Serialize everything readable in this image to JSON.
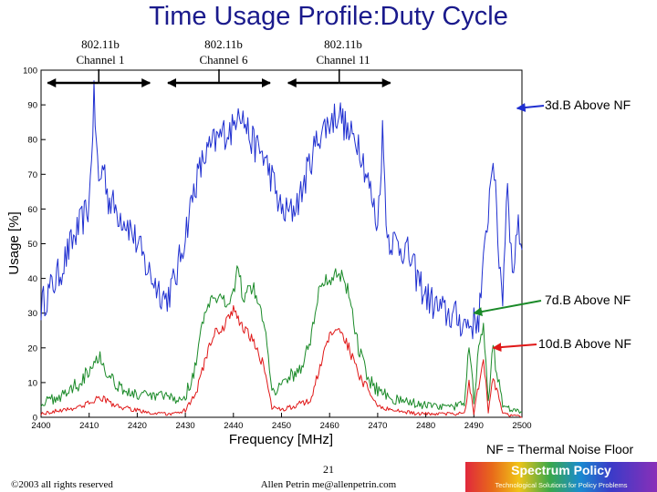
{
  "slide": {
    "title": "Time Usage Profile:Duty Cycle",
    "channels": [
      {
        "line1": "802.11b",
        "line2": "Channel 1",
        "range": [
          2401,
          2423
        ],
        "marker": 2412
      },
      {
        "line1": "802.11b",
        "line2": "Channel 6",
        "range": [
          2426,
          2448
        ],
        "marker": 2437
      },
      {
        "line1": "802.11b",
        "line2": "Channel 11",
        "range": [
          2451,
          2473
        ],
        "marker": 2462
      }
    ],
    "note": "NF = Thermal Noise Floor",
    "page_number": "21",
    "author": "Allen Petrin  me@allenpetrin.com",
    "copyright": "©2003 all rights reserved",
    "logo": {
      "title": "Spectrum Policy",
      "tagline": "Technological Solutions for Policy Problems"
    }
  },
  "chart_data": {
    "type": "line",
    "xlabel": "Frequency [MHz]",
    "ylabel": "Usage [%]",
    "xlim": [
      2400,
      2500
    ],
    "ylim": [
      0,
      100
    ],
    "xticks": [
      2400,
      2410,
      2420,
      2430,
      2440,
      2450,
      2460,
      2470,
      2480,
      2490,
      2500
    ],
    "yticks": [
      0,
      10,
      20,
      30,
      40,
      50,
      60,
      70,
      80,
      90,
      100
    ],
    "grid": false,
    "series": [
      {
        "name": "3d.B Above NF",
        "color": "#1f2fd0",
        "x": [
          2400,
          2402,
          2404,
          2406,
          2408,
          2410,
          2411,
          2412,
          2413,
          2414,
          2416,
          2418,
          2420,
          2422,
          2424,
          2426,
          2428,
          2430,
          2432,
          2434,
          2436,
          2438,
          2440,
          2441,
          2442,
          2444,
          2446,
          2448,
          2450,
          2452,
          2454,
          2456,
          2458,
          2460,
          2462,
          2464,
          2466,
          2468,
          2470,
          2471,
          2472,
          2474,
          2476,
          2478,
          2480,
          2482,
          2484,
          2486,
          2488,
          2490,
          2491,
          2492,
          2493,
          2494,
          2495,
          2496,
          2497,
          2498,
          2499,
          2500
        ],
        "y": [
          32,
          37,
          42,
          49,
          55,
          61,
          92,
          67,
          73,
          63,
          59,
          56,
          50,
          43,
          38,
          34,
          40,
          53,
          67,
          75,
          79,
          82,
          83,
          91,
          86,
          79,
          76,
          69,
          59,
          59,
          64,
          74,
          82,
          85,
          88,
          81,
          80,
          68,
          55,
          82,
          52,
          50,
          48,
          41,
          35,
          32,
          30,
          29,
          27,
          27,
          29,
          43,
          60,
          77,
          50,
          35,
          70,
          40,
          55,
          50
        ]
      },
      {
        "name": "7d.B Above NF",
        "color": "#1a8a28",
        "x": [
          2400,
          2404,
          2408,
          2410,
          2412,
          2414,
          2418,
          2422,
          2426,
          2428,
          2430,
          2432,
          2434,
          2436,
          2438,
          2440,
          2441,
          2442,
          2444,
          2446,
          2447,
          2448,
          2450,
          2452,
          2454,
          2456,
          2458,
          2460,
          2462,
          2464,
          2466,
          2468,
          2470,
          2474,
          2478,
          2482,
          2486,
          2488,
          2489,
          2490,
          2491,
          2492,
          2493,
          2494,
          2496,
          2500
        ],
        "y": [
          4,
          6,
          10,
          14,
          18,
          12,
          7,
          6,
          6,
          5,
          6,
          14,
          30,
          34,
          33,
          36,
          45,
          34,
          38,
          29,
          22,
          8,
          9,
          12,
          14,
          22,
          38,
          40,
          42,
          36,
          20,
          11,
          8,
          5,
          4,
          3,
          3,
          4,
          22,
          5,
          20,
          25,
          5,
          20,
          3,
          2
        ]
      },
      {
        "name": "10d.B Above NF",
        "color": "#e01818",
        "x": [
          2400,
          2404,
          2408,
          2410,
          2412,
          2416,
          2420,
          2424,
          2428,
          2430,
          2432,
          2434,
          2436,
          2438,
          2440,
          2442,
          2444,
          2446,
          2447,
          2448,
          2450,
          2452,
          2454,
          2456,
          2458,
          2460,
          2462,
          2464,
          2466,
          2468,
          2470,
          2474,
          2478,
          2482,
          2486,
          2488,
          2489,
          2490,
          2491,
          2492,
          2493,
          2494,
          2496,
          2500
        ],
        "y": [
          1,
          2,
          3,
          4,
          6,
          3,
          2,
          1,
          1,
          2,
          6,
          16,
          24,
          26,
          31,
          26,
          22,
          16,
          10,
          3,
          2,
          3,
          4,
          5,
          14,
          24,
          26,
          20,
          12,
          8,
          3,
          2,
          1,
          1,
          1,
          1,
          10,
          1,
          9,
          18,
          1,
          12,
          1,
          0
        ]
      }
    ],
    "annotations": [
      {
        "text": "3d.B Above NF",
        "x": 2499,
        "y": 89,
        "color": "#1f2fd0"
      },
      {
        "text": "7d.B Above NF",
        "x": 2490,
        "y": 30,
        "color": "#1a8a28"
      },
      {
        "text": "10d.B Above NF",
        "x": 2494,
        "y": 20,
        "color": "#e01818"
      }
    ]
  }
}
